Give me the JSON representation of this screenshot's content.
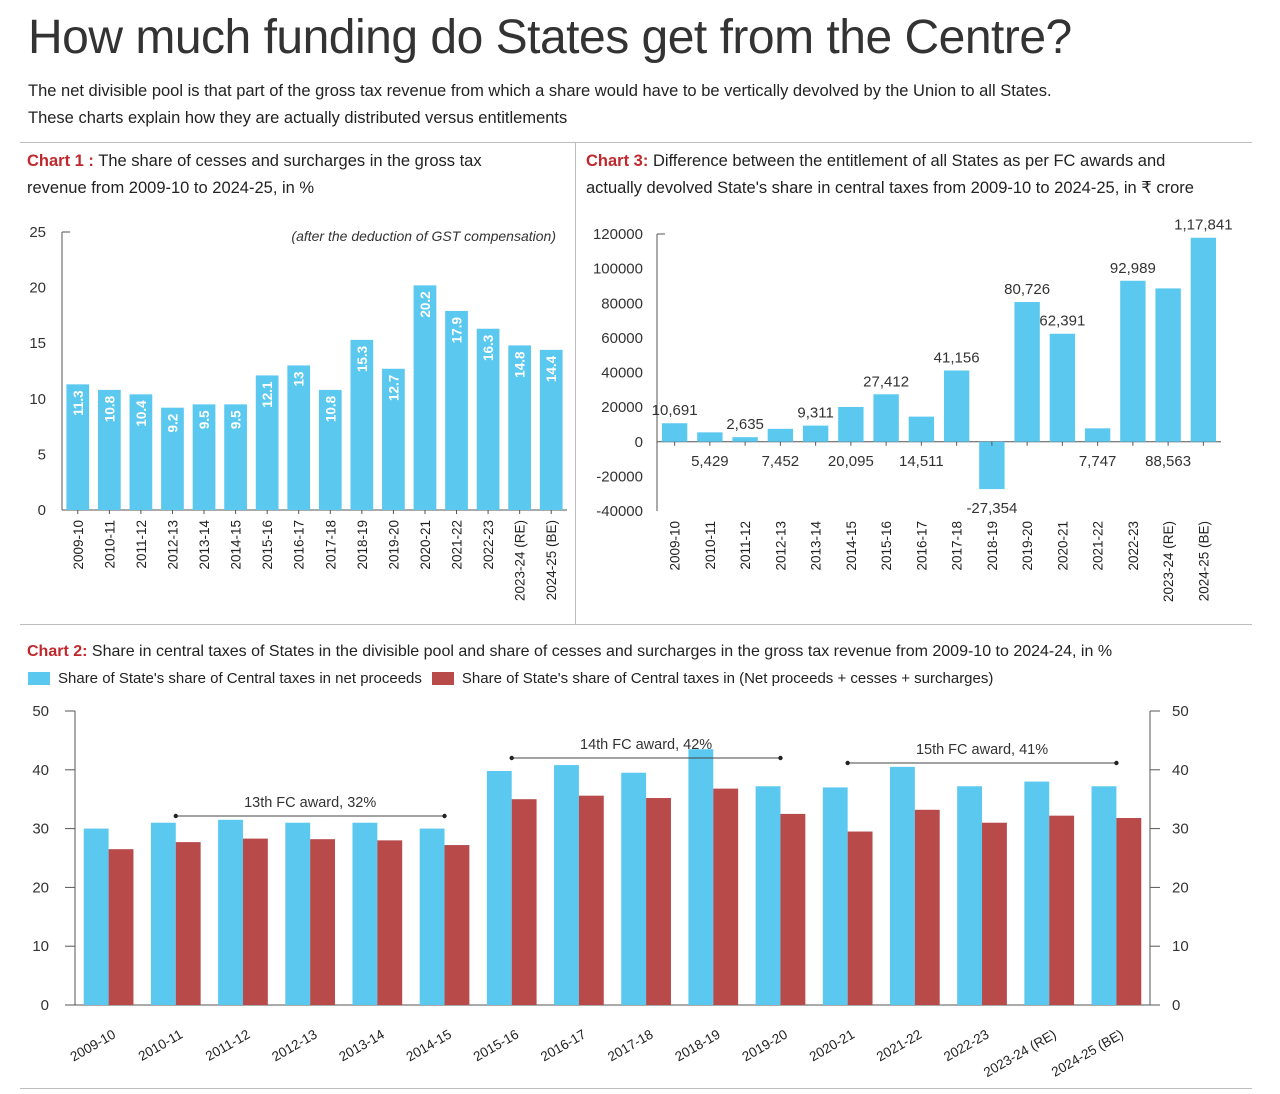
{
  "header": {
    "title": "How much funding do States get from the Centre?",
    "subtitle_line1": "The net divisible pool is that part of the gross tax revenue from which a share would have to be vertically devolved by the Union to all States.",
    "subtitle_line2": "These charts explain how they are actually distributed versus entitlements"
  },
  "colors": {
    "blue": "#5bc8f0",
    "red": "#b84a4a",
    "accent_label": "#c0282d",
    "axis": "#555555"
  },
  "chart1": {
    "label": "Chart 1 :",
    "title_line1": "The share of cesses and surcharges in the gross tax",
    "title_line2": "revenue from 2009-10 to 2024-25, in %"
  },
  "chart3": {
    "label": "Chart 3:",
    "title_line1": "Difference between the entitlement of all States as per FC awards and",
    "title_line2": "actually devolved State's share in central taxes from 2009-10 to 2024-25, in ₹ crore"
  },
  "chart2": {
    "label": "Chart 2:",
    "title": "Share in central taxes of States in the divisible pool and share of cesses and surcharges in the gross tax revenue from 2009-10 to 2024-24, in %",
    "legend_blue": "Share of State's share of Central taxes in net proceeds",
    "legend_red": "Share of State's share of Central taxes in (Net proceeds + cesses + surcharges)"
  },
  "chart_data": [
    {
      "id": "chart1",
      "type": "bar",
      "title": "The share of cesses and surcharges in the gross tax revenue from 2009-10 to 2024-25, in %",
      "annotation": "(after the deduction of GST compensation)",
      "categories": [
        "2009-10",
        "2010-11",
        "2011-12",
        "2012-13",
        "2013-14",
        "2014-15",
        "2015-16",
        "2016-17",
        "2017-18",
        "2018-19",
        "2019-20",
        "2020-21",
        "2021-22",
        "2022-23",
        "2023-24 (RE)",
        "2024-25 (BE)"
      ],
      "values": [
        11.3,
        10.8,
        10.4,
        9.2,
        9.5,
        9.5,
        12.1,
        13,
        10.8,
        15.3,
        12.7,
        20.2,
        17.9,
        16.3,
        14.8,
        14.4
      ],
      "data_labels": [
        "11.3",
        "10.8",
        "10.4",
        "9.2",
        "9.5",
        "9.5",
        "12.1",
        "13",
        "10.8",
        "15.3",
        "12.7",
        "20.2",
        "17.9",
        "16.3",
        "14.8",
        "14.4"
      ],
      "ylim": [
        0,
        25
      ],
      "yticks": [
        "0",
        "5",
        "10",
        "15",
        "20",
        "25"
      ],
      "grid": false
    },
    {
      "id": "chart3",
      "type": "bar",
      "title": "Difference between the entitlement of all States as per FC awards and actually devolved State's share in central taxes from 2009-10 to 2024-25, in ₹ crore",
      "categories": [
        "2009-10",
        "2010-11",
        "2011-12",
        "2012-13",
        "2013-14",
        "2014-15",
        "2015-16",
        "2016-17",
        "2017-18",
        "2018-19",
        "2019-20",
        "2020-21",
        "2021-22",
        "2022-23",
        "2023-24 (RE)",
        "2024-25 (BE)"
      ],
      "values": [
        10691,
        5429,
        2635,
        7452,
        9311,
        20095,
        27412,
        14511,
        41156,
        -27354,
        80726,
        62391,
        7747,
        92989,
        88563,
        117841
      ],
      "data_labels": [
        "10,691",
        "5,429",
        "2,635",
        "7,452",
        "9,311",
        "20,095",
        "27,412",
        "14,511",
        "41,156",
        "-27,354",
        "80,726",
        "62,391",
        "7,747",
        "92,989",
        "88,563",
        "1,17,841"
      ],
      "label_position": [
        "above",
        "below",
        "above",
        "below",
        "above",
        "below",
        "above",
        "below",
        "above",
        "below",
        "above",
        "above",
        "below",
        "above",
        "below",
        "above"
      ],
      "ylim": [
        -40000,
        120000
      ],
      "yticks": [
        "-40000",
        "-20000",
        "0",
        "20000",
        "40000",
        "60000",
        "80000",
        "100000",
        "120000"
      ],
      "grid": false
    },
    {
      "id": "chart2",
      "type": "bar",
      "title": "Share in central taxes of States in the divisible pool and share of cesses and surcharges in the gross tax revenue from 2009-10 to 2024-24, in %",
      "categories": [
        "2009-10",
        "2010-11",
        "2011-12",
        "2012-13",
        "2013-14",
        "2014-15",
        "2015-16",
        "2016-17",
        "2017-18",
        "2018-19",
        "2019-20",
        "2020-21",
        "2021-22",
        "2022-23",
        "2023-24 (RE)",
        "2024-25 (BE)"
      ],
      "series": [
        {
          "name": "Share of State's share of Central taxes in net proceeds",
          "color": "#5bc8f0",
          "values": [
            30,
            31,
            31.5,
            31,
            31,
            30,
            39.8,
            40.8,
            39.5,
            43.5,
            37.2,
            37,
            40.5,
            37.2,
            38,
            37.2
          ]
        },
        {
          "name": "Share of State's share of Central taxes in (Net proceeds + cesses + surcharges)",
          "color": "#b84a4a",
          "values": [
            26.5,
            27.7,
            28.3,
            28.2,
            28,
            27.2,
            35,
            35.6,
            35.2,
            36.8,
            32.5,
            29.5,
            33.2,
            31,
            32.2,
            31.8
          ]
        }
      ],
      "ylim": [
        0,
        50
      ],
      "yticks": [
        "0",
        "10",
        "20",
        "30",
        "40",
        "50"
      ],
      "annotations": [
        {
          "text": "13th FC award, 32%",
          "from": "2010-11",
          "to": "2014-15"
        },
        {
          "text": "14th FC award, 42%",
          "from": "2015-16",
          "to": "2019-20"
        },
        {
          "text": "15th FC award, 41%",
          "from": "2020-21",
          "to": "2024-25 (BE)"
        }
      ],
      "legend": "top-left",
      "grid": false
    }
  ]
}
